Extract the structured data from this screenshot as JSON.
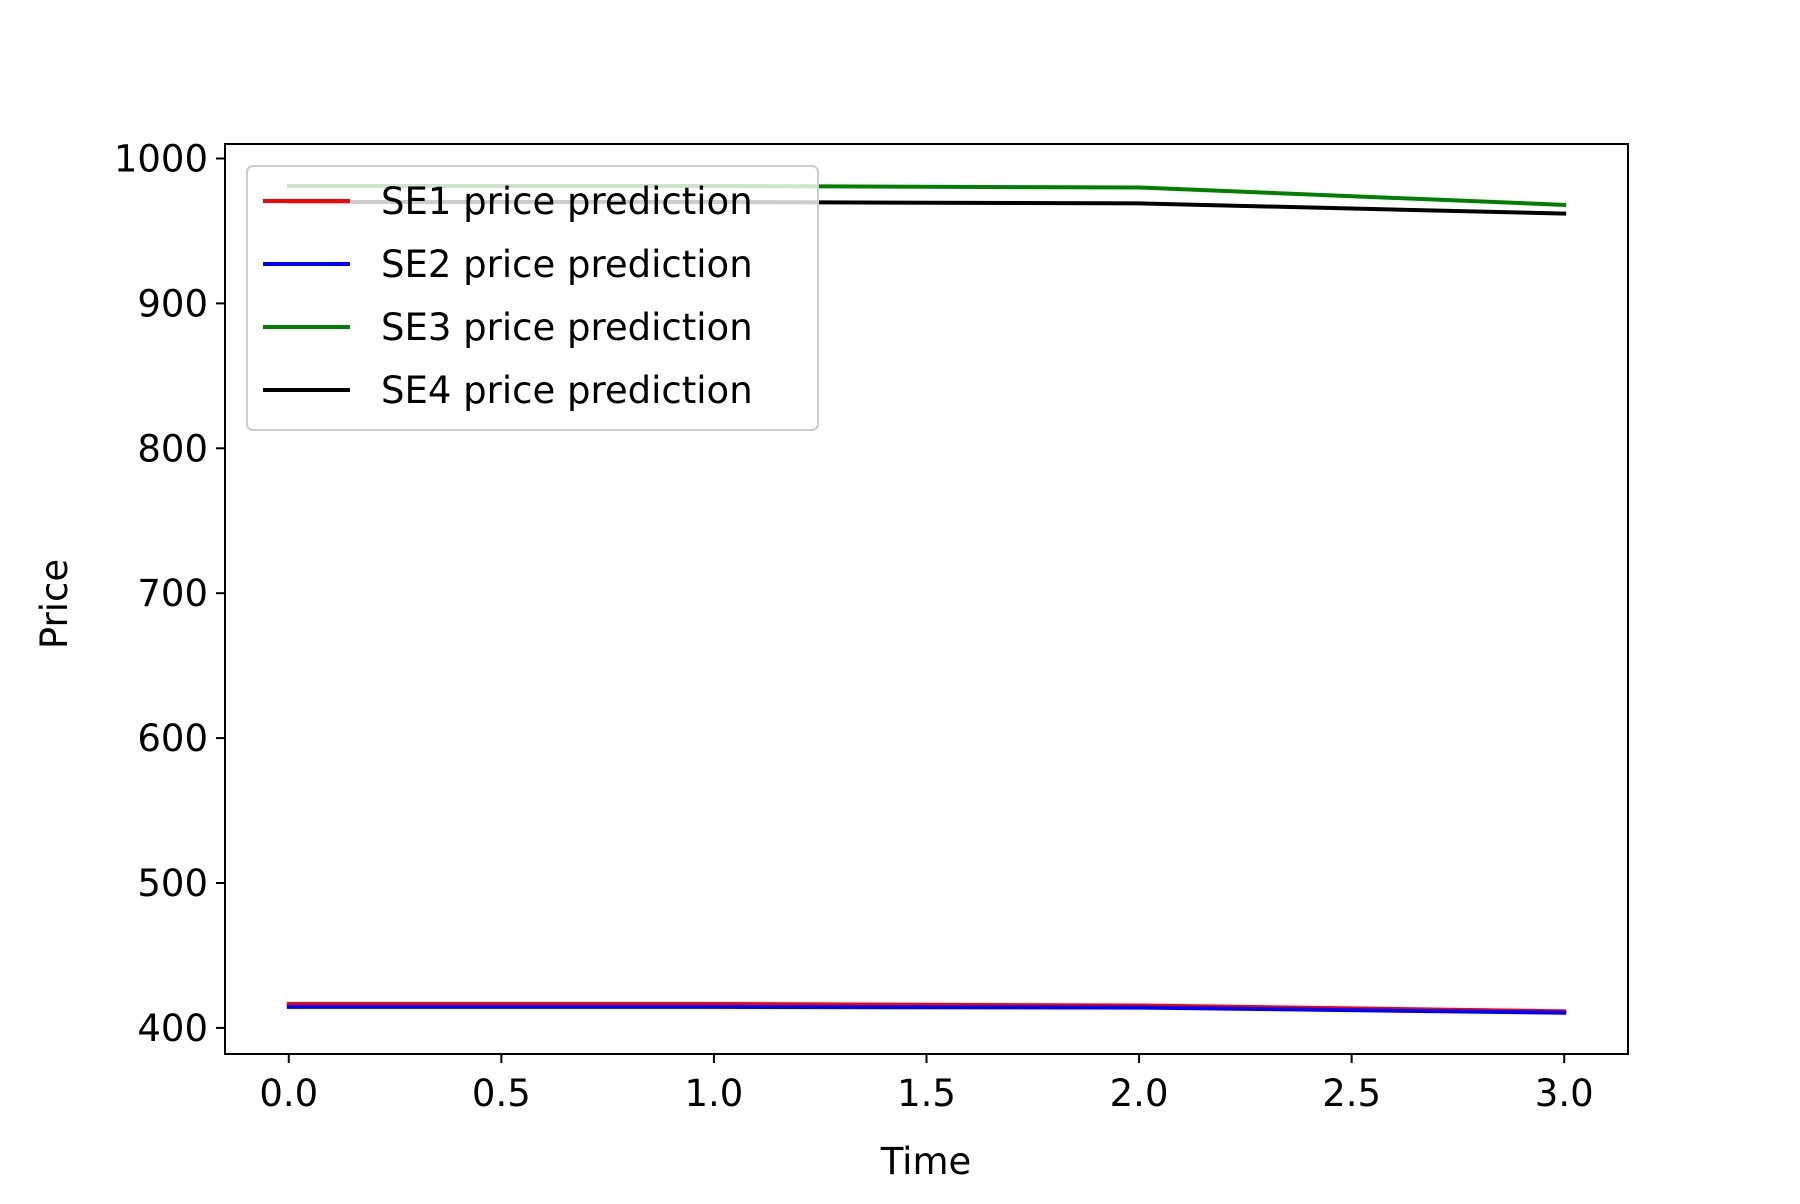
{
  "chart_data": {
    "type": "line",
    "title": "",
    "xlabel": "Time",
    "ylabel": "Price",
    "x": [
      0,
      1,
      2,
      3
    ],
    "xlim": [
      -0.15,
      3.15
    ],
    "ylim": [
      382,
      1010
    ],
    "xticks": [
      "0.0",
      "0.5",
      "1.0",
      "1.5",
      "2.0",
      "2.5",
      "3.0"
    ],
    "xtick_values": [
      0,
      0.5,
      1,
      1.5,
      2,
      2.5,
      3
    ],
    "yticks": [
      "400",
      "500",
      "600",
      "700",
      "800",
      "900",
      "1000"
    ],
    "ytick_values": [
      400,
      500,
      600,
      700,
      800,
      900,
      1000
    ],
    "grid": false,
    "legend_position": "upper-left",
    "series": [
      {
        "name": "SE1 price prediction",
        "color": "#ff0000",
        "values": [
          416.5,
          416.5,
          415.5,
          411.5
        ]
      },
      {
        "name": "SE2 price prediction",
        "color": "#0000ff",
        "values": [
          414.5,
          414.5,
          414,
          410.5
        ]
      },
      {
        "name": "SE3 price prediction",
        "color": "#008000",
        "values": [
          981,
          981,
          980,
          968
        ]
      },
      {
        "name": "SE4 price prediction",
        "color": "#000000",
        "values": [
          970,
          970,
          969,
          962
        ]
      }
    ]
  }
}
